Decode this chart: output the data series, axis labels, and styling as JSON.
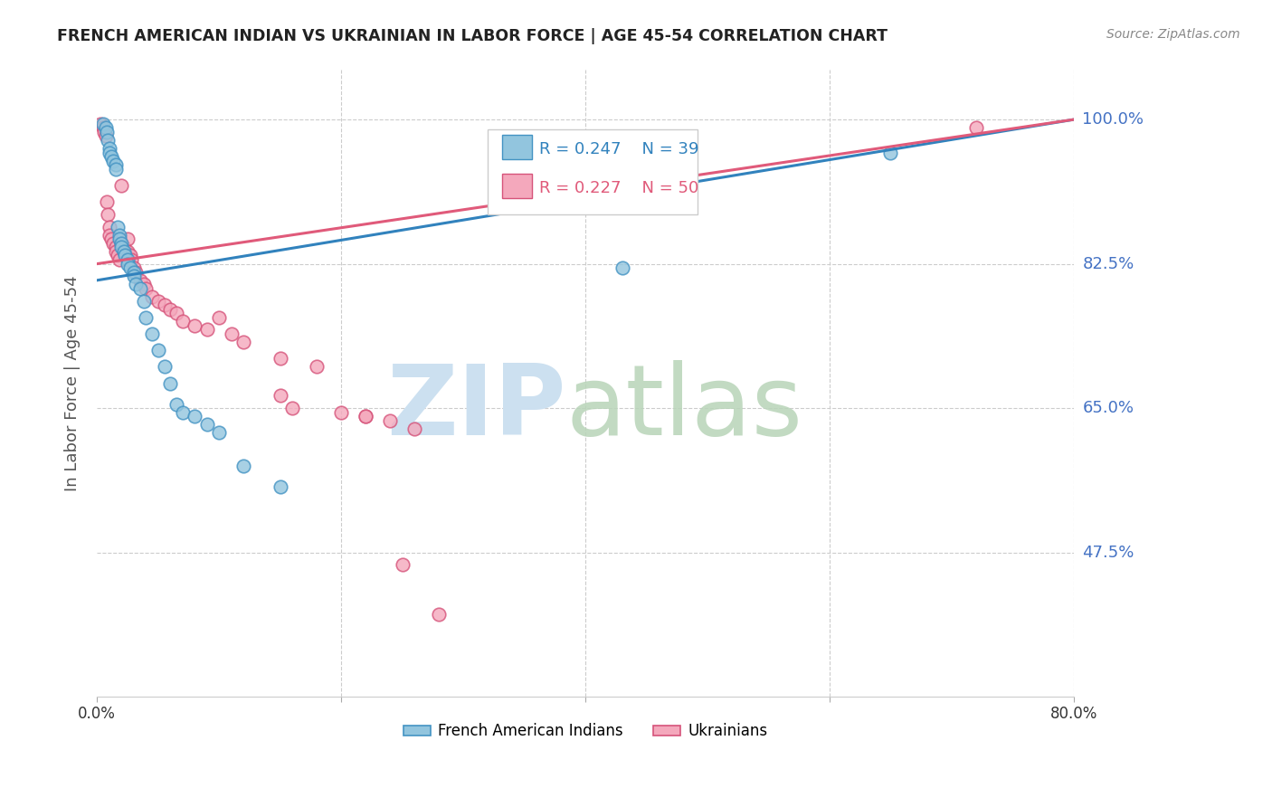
{
  "title": "FRENCH AMERICAN INDIAN VS UKRAINIAN IN LABOR FORCE | AGE 45-54 CORRELATION CHART",
  "source": "Source: ZipAtlas.com",
  "ylabel": "In Labor Force | Age 45-54",
  "ytick_labels": [
    "100.0%",
    "82.5%",
    "65.0%",
    "47.5%"
  ],
  "ytick_values": [
    1.0,
    0.825,
    0.65,
    0.475
  ],
  "xmin": 0.0,
  "xmax": 0.8,
  "ymin": 0.3,
  "ymax": 1.06,
  "blue_label": "French American Indians",
  "pink_label": "Ukrainians",
  "blue_R": 0.247,
  "blue_N": 39,
  "pink_R": 0.227,
  "pink_N": 50,
  "blue_color": "#92c5de",
  "pink_color": "#f4a8bc",
  "blue_edge_color": "#4393c3",
  "pink_edge_color": "#d6537a",
  "blue_line_color": "#3182bd",
  "pink_line_color": "#e05a7a",
  "title_color": "#222222",
  "right_tick_color": "#4472c4",
  "grid_color": "#cccccc",
  "blue_x": [
    0.005,
    0.007,
    0.008,
    0.009,
    0.01,
    0.01,
    0.012,
    0.013,
    0.015,
    0.015,
    0.017,
    0.018,
    0.018,
    0.02,
    0.02,
    0.022,
    0.023,
    0.025,
    0.025,
    0.027,
    0.03,
    0.03,
    0.032,
    0.035,
    0.038,
    0.04,
    0.045,
    0.05,
    0.055,
    0.06,
    0.065,
    0.07,
    0.08,
    0.09,
    0.1,
    0.12,
    0.15,
    0.43,
    0.65
  ],
  "blue_y": [
    0.995,
    0.99,
    0.985,
    0.975,
    0.965,
    0.96,
    0.955,
    0.95,
    0.945,
    0.94,
    0.87,
    0.86,
    0.855,
    0.85,
    0.845,
    0.84,
    0.835,
    0.83,
    0.825,
    0.82,
    0.815,
    0.81,
    0.8,
    0.795,
    0.78,
    0.76,
    0.74,
    0.72,
    0.7,
    0.68,
    0.655,
    0.645,
    0.64,
    0.63,
    0.62,
    0.58,
    0.555,
    0.82,
    0.96
  ],
  "pink_x": [
    0.003,
    0.005,
    0.006,
    0.007,
    0.008,
    0.009,
    0.01,
    0.01,
    0.012,
    0.013,
    0.015,
    0.015,
    0.017,
    0.018,
    0.02,
    0.02,
    0.022,
    0.023,
    0.025,
    0.025,
    0.027,
    0.028,
    0.03,
    0.032,
    0.035,
    0.038,
    0.04,
    0.045,
    0.05,
    0.055,
    0.06,
    0.065,
    0.07,
    0.08,
    0.09,
    0.1,
    0.11,
    0.12,
    0.15,
    0.18,
    0.2,
    0.22,
    0.25,
    0.28,
    0.15,
    0.16,
    0.22,
    0.24,
    0.26,
    0.72
  ],
  "pink_y": [
    0.995,
    0.99,
    0.985,
    0.98,
    0.9,
    0.885,
    0.87,
    0.86,
    0.855,
    0.85,
    0.845,
    0.84,
    0.835,
    0.83,
    0.92,
    0.85,
    0.845,
    0.84,
    0.855,
    0.84,
    0.835,
    0.83,
    0.82,
    0.815,
    0.805,
    0.8,
    0.795,
    0.785,
    0.78,
    0.775,
    0.77,
    0.765,
    0.755,
    0.75,
    0.745,
    0.76,
    0.74,
    0.73,
    0.71,
    0.7,
    0.645,
    0.64,
    0.46,
    0.4,
    0.665,
    0.65,
    0.64,
    0.635,
    0.625,
    0.99
  ]
}
